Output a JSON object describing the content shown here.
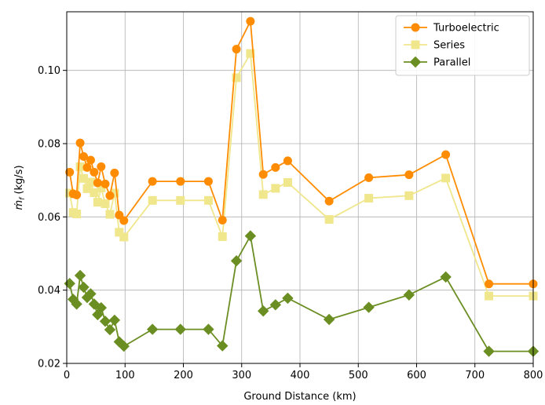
{
  "chart_data": {
    "type": "line",
    "xlabel": "Ground Distance (km)",
    "ylabel": "ṁ",
    "ylabel_sub": "f",
    "ylabel_unit": " (kg/s)",
    "xlim": [
      0,
      800
    ],
    "ylim": [
      0.02,
      0.116
    ],
    "xticks": [
      0,
      100,
      200,
      300,
      400,
      500,
      600,
      700,
      800
    ],
    "yticks": [
      0.02,
      0.04,
      0.06,
      0.08,
      0.1
    ],
    "xtick_labels": [
      "0",
      "100",
      "200",
      "300",
      "400",
      "500",
      "600",
      "700",
      "800"
    ],
    "ytick_labels": [
      "0.02",
      "0.04",
      "0.06",
      "0.08",
      "0.10"
    ],
    "grid": true,
    "legend_position": "top-right",
    "series": [
      {
        "name": "Turboelectric",
        "color": "#ff8c00",
        "marker": "circle",
        "x": [
          5,
          11,
          17,
          23,
          29,
          35,
          41,
          47,
          53,
          59,
          66,
          74,
          82,
          90,
          98,
          147,
          195,
          243,
          267,
          291,
          315,
          337,
          358,
          379,
          450,
          518,
          587,
          650,
          724,
          800
        ],
        "y": [
          0.0722,
          0.0663,
          0.066,
          0.0802,
          0.0765,
          0.0735,
          0.0755,
          0.0722,
          0.0693,
          0.0737,
          0.069,
          0.0658,
          0.072,
          0.0605,
          0.059,
          0.0697,
          0.0697,
          0.0697,
          0.0591,
          0.1058,
          0.1134,
          0.0716,
          0.0735,
          0.0753,
          0.0643,
          0.0707,
          0.0715,
          0.077,
          0.0417,
          0.0417
        ]
      },
      {
        "name": "Series",
        "color": "#f0e68c",
        "marker": "square",
        "x": [
          5,
          11,
          17,
          23,
          29,
          35,
          41,
          47,
          53,
          59,
          66,
          74,
          82,
          90,
          98,
          147,
          195,
          243,
          267,
          291,
          315,
          337,
          358,
          379,
          450,
          518,
          587,
          650,
          724,
          800
        ],
        "y": [
          0.0665,
          0.0612,
          0.0608,
          0.0737,
          0.0705,
          0.0677,
          0.0695,
          0.0666,
          0.064,
          0.0679,
          0.0636,
          0.0607,
          0.0665,
          0.0558,
          0.0545,
          0.0645,
          0.0645,
          0.0645,
          0.0546,
          0.098,
          0.1046,
          0.0661,
          0.0678,
          0.0694,
          0.0593,
          0.0651,
          0.0658,
          0.0706,
          0.0384,
          0.0384
        ]
      },
      {
        "name": "Parallel",
        "color": "#6b8e23",
        "marker": "diamond",
        "x": [
          5,
          11,
          17,
          23,
          29,
          35,
          41,
          47,
          53,
          59,
          66,
          74,
          82,
          90,
          98,
          147,
          195,
          243,
          267,
          291,
          315,
          337,
          358,
          379,
          450,
          518,
          587,
          650,
          724,
          800
        ],
        "y": [
          0.0418,
          0.0375,
          0.0362,
          0.044,
          0.0408,
          0.038,
          0.039,
          0.0362,
          0.0333,
          0.0352,
          0.0315,
          0.0292,
          0.0318,
          0.0259,
          0.0247,
          0.0293,
          0.0293,
          0.0293,
          0.0248,
          0.048,
          0.0548,
          0.0343,
          0.036,
          0.0378,
          0.032,
          0.0353,
          0.0387,
          0.0436,
          0.0233,
          0.0233
        ]
      }
    ]
  }
}
